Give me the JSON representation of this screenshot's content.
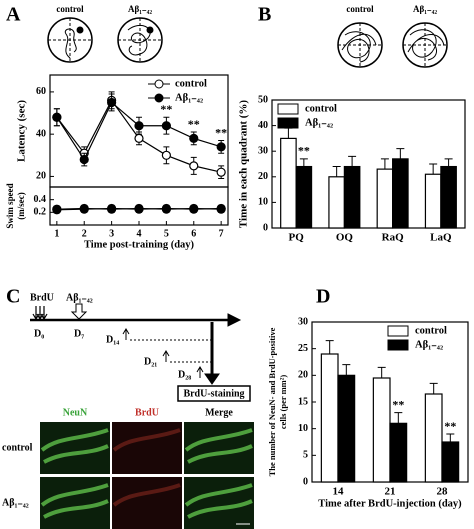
{
  "panels": [
    "A",
    "B",
    "C",
    "D"
  ],
  "tracks_A": [
    "control",
    "Aβ₁₋₄₂"
  ],
  "tracks_B": [
    "control",
    "Aβ₁₋₄₂"
  ],
  "timeline": {
    "injections": [
      "BrdU",
      "Aβ₁₋₄₂"
    ],
    "days": [
      "D₀",
      "D₇",
      "D₁₄",
      "D₂₁",
      "D₂₈"
    ],
    "endpoint": "BrdU-staining"
  },
  "micrographs": {
    "columns": [
      "NeuN",
      "BrdU",
      "Merge"
    ],
    "rows": [
      "control",
      "Aβ₁₋₄₂"
    ]
  },
  "chart_data": [
    {
      "type": "line",
      "ylabel": "Latency (sec)",
      "x": [
        1,
        2,
        3,
        4,
        5,
        6,
        7
      ],
      "xlim": [
        0.75,
        7.25
      ],
      "ylim": [
        15,
        68
      ],
      "yticks": [
        20,
        40,
        60
      ],
      "legend": "upper right",
      "series": [
        {
          "name": "control",
          "color": "#ffffff",
          "values": [
            48,
            31,
            56,
            38,
            30,
            25,
            22
          ],
          "errors": [
            4,
            3,
            4,
            3,
            4,
            4,
            3
          ]
        },
        {
          "name": "Aβ₁₋₄₂",
          "color": "#000000",
          "values": [
            48,
            28,
            55,
            44,
            44,
            38,
            34
          ],
          "errors": [
            4,
            3,
            4,
            4,
            4,
            3,
            3
          ]
        }
      ],
      "annotations": [
        {
          "text": "**",
          "x": 5
        },
        {
          "text": "**",
          "x": 6
        },
        {
          "text": "**",
          "x": 7
        }
      ]
    },
    {
      "type": "line",
      "ylabel": [
        "Swim speed",
        "(m/sec)"
      ],
      "xlabel": "Time post-training (day)",
      "x": [
        1,
        2,
        3,
        4,
        5,
        6,
        7
      ],
      "xlim": [
        0.75,
        7.25
      ],
      "xticks": [
        1,
        2,
        3,
        4,
        5,
        6,
        7
      ],
      "ylim": [
        0,
        0.6
      ],
      "yticks": [
        0.2,
        0.4
      ],
      "series": [
        {
          "name": "control",
          "color": "#ffffff",
          "values": [
            0.25,
            0.26,
            0.25,
            0.26,
            0.25,
            0.26,
            0.25
          ],
          "errors": [
            0.05,
            0.05,
            0.05,
            0.05,
            0.05,
            0.05,
            0.05
          ]
        },
        {
          "name": "Aβ₁₋₄₂",
          "color": "#000000",
          "values": [
            0.24,
            0.25,
            0.26,
            0.25,
            0.26,
            0.25,
            0.26
          ],
          "errors": [
            0.05,
            0.05,
            0.05,
            0.05,
            0.05,
            0.05,
            0.05
          ]
        }
      ]
    },
    {
      "type": "bar",
      "ylabel": "Time in each quadrant (%)",
      "categories": [
        "PQ",
        "OQ",
        "RaQ",
        "LaQ"
      ],
      "ylim": [
        0,
        50
      ],
      "yticks": [
        0,
        10,
        20,
        30,
        40,
        50
      ],
      "legend": "upper left",
      "series": [
        {
          "name": "control",
          "color": "#ffffff",
          "values": [
            35,
            20,
            23,
            21
          ],
          "errors": [
            4,
            4,
            4,
            4
          ]
        },
        {
          "name": "Aβ₁₋₄₂",
          "color": "#000000",
          "values": [
            24,
            24,
            27,
            24
          ],
          "errors": [
            3,
            4,
            4,
            3
          ]
        }
      ],
      "annotations": [
        {
          "text": "**",
          "category": "PQ"
        }
      ]
    },
    {
      "type": "bar",
      "ylabel": [
        "The number of NeuN- and BrdU-positive",
        "cells (per mm²)"
      ],
      "xlabel": "Time after BrdU-injection (day)",
      "categories": [
        "14",
        "21",
        "28"
      ],
      "ylim": [
        0,
        30
      ],
      "yticks": [
        0,
        5,
        10,
        15,
        20,
        25,
        30
      ],
      "legend": "upper right",
      "series": [
        {
          "name": "control",
          "color": "#ffffff",
          "values": [
            24,
            19.5,
            16.5
          ],
          "errors": [
            2.5,
            2,
            2
          ]
        },
        {
          "name": "Aβ₁₋₄₂",
          "color": "#000000",
          "values": [
            20,
            11,
            7.5
          ],
          "errors": [
            2,
            2,
            1.5
          ]
        }
      ],
      "annotations": [
        {
          "text": "**",
          "category": "21"
        },
        {
          "text": "**",
          "category": "28"
        }
      ]
    }
  ]
}
